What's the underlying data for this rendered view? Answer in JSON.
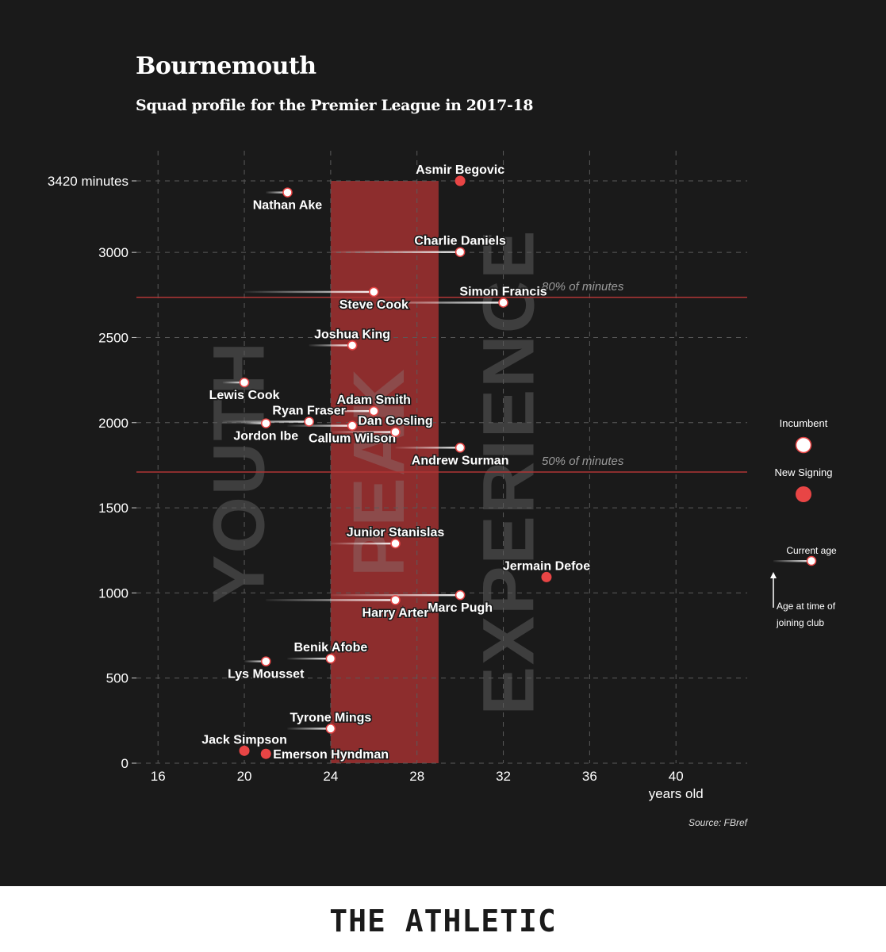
{
  "header": {
    "title": "Bournemouth",
    "subtitle": "Squad profile for the Premier League in 2017-18"
  },
  "source": "Source: FBref",
  "footer": {
    "brand": "THE ATHLETIC"
  },
  "zones": [
    {
      "label": "YOUTH",
      "x_center": 20
    },
    {
      "label": "PEAK",
      "x_center": 26.5
    },
    {
      "label": "EXPERIENCE",
      "x_center": 32.5
    }
  ],
  "legend": {
    "incumbent": "Incumbent",
    "new_signing": "New Signing",
    "current_age": "Current age",
    "age_joining_1": "Age at time of",
    "age_joining_2": "joining club"
  },
  "colors": {
    "background": "#1a1a1a",
    "peak_band": "#9a3030",
    "new_signing": "#e84545",
    "incumbent": "#ffffff",
    "reference_line": "#b03535"
  },
  "chart_data": {
    "type": "scatter",
    "title": "Bournemouth",
    "subtitle": "Squad profile for the Premier League in 2017-18",
    "xlabel": "years old",
    "ylabel": "minutes",
    "xlim": [
      15,
      43.3
    ],
    "ylim": [
      0,
      3420
    ],
    "x_ticks": [
      16,
      20,
      24,
      28,
      32,
      36,
      40
    ],
    "y_ticks": [
      {
        "value": 0,
        "label": "0"
      },
      {
        "value": 500,
        "label": "500"
      },
      {
        "value": 1000,
        "label": "1000"
      },
      {
        "value": 1500,
        "label": "1500"
      },
      {
        "value": 2000,
        "label": "2000"
      },
      {
        "value": 2500,
        "label": "2500"
      },
      {
        "value": 3000,
        "label": "3000"
      },
      {
        "value": 3420,
        "label": "3420 minutes"
      }
    ],
    "grid": true,
    "peak_band": {
      "from": 24,
      "to": 29
    },
    "reference_lines": [
      {
        "value": 2736,
        "label": "80% of minutes"
      },
      {
        "value": 1710,
        "label": "50% of minutes"
      }
    ],
    "players": [
      {
        "name": "Asmir Begovic",
        "age": 30,
        "minutes": 3420,
        "joined_age": 30,
        "new": true,
        "label_pos": "above"
      },
      {
        "name": "Nathan Ake",
        "age": 22,
        "minutes": 3352,
        "joined_age": 21,
        "new": false,
        "label_pos": "below"
      },
      {
        "name": "Charlie Daniels",
        "age": 30,
        "minutes": 3002,
        "joined_age": 24,
        "new": false,
        "label_pos": "above"
      },
      {
        "name": "Steve Cook",
        "age": 26,
        "minutes": 2768,
        "joined_age": 20,
        "new": false,
        "label_pos": "below"
      },
      {
        "name": "Simon Francis",
        "age": 32,
        "minutes": 2705,
        "joined_age": 26,
        "new": false,
        "label_pos": "above"
      },
      {
        "name": "Joshua King",
        "age": 25,
        "minutes": 2454,
        "joined_age": 23,
        "new": false,
        "label_pos": "above"
      },
      {
        "name": "Lewis Cook",
        "age": 20,
        "minutes": 2236,
        "joined_age": 19,
        "new": false,
        "label_pos": "below"
      },
      {
        "name": "Adam Smith",
        "age": 26,
        "minutes": 2068,
        "joined_age": 23,
        "new": false,
        "label_pos": "above"
      },
      {
        "name": "Ryan Fraser",
        "age": 23,
        "minutes": 2006,
        "joined_age": 19,
        "new": false,
        "label_pos": "above"
      },
      {
        "name": "Jordon Ibe",
        "age": 21,
        "minutes": 1996,
        "joined_age": 20,
        "new": false,
        "label_pos": "below"
      },
      {
        "name": "Callum Wilson",
        "age": 25,
        "minutes": 1982,
        "joined_age": 22,
        "new": false,
        "label_pos": "below"
      },
      {
        "name": "Dan Gosling",
        "age": 27,
        "minutes": 1945,
        "joined_age": 24,
        "new": false,
        "label_pos": "above"
      },
      {
        "name": "Andrew Surman",
        "age": 30,
        "minutes": 1853,
        "joined_age": 27,
        "new": false,
        "label_pos": "below"
      },
      {
        "name": "Junior Stanislas",
        "age": 27,
        "minutes": 1290,
        "joined_age": 24,
        "new": false,
        "label_pos": "above"
      },
      {
        "name": "Jermain Defoe",
        "age": 34,
        "minutes": 1093,
        "joined_age": 34,
        "new": true,
        "label_pos": "above"
      },
      {
        "name": "Marc Pugh",
        "age": 30,
        "minutes": 987,
        "joined_age": 24,
        "new": false,
        "label_pos": "below"
      },
      {
        "name": "Harry Arter",
        "age": 27,
        "minutes": 958,
        "joined_age": 21,
        "new": false,
        "label_pos": "below"
      },
      {
        "name": "Benik Afobe",
        "age": 24,
        "minutes": 614,
        "joined_age": 22,
        "new": false,
        "label_pos": "above"
      },
      {
        "name": "Lys Mousset",
        "age": 21,
        "minutes": 598,
        "joined_age": 20,
        "new": false,
        "label_pos": "below"
      },
      {
        "name": "Tyrone Mings",
        "age": 24,
        "minutes": 203,
        "joined_age": 22,
        "new": false,
        "label_pos": "above"
      },
      {
        "name": "Jack Simpson",
        "age": 20,
        "minutes": 73,
        "joined_age": 20,
        "new": true,
        "label_pos": "above"
      },
      {
        "name": "Emerson Hyndman",
        "age": 21,
        "minutes": 55,
        "joined_age": 21,
        "new": true,
        "label_pos": "right"
      }
    ]
  }
}
